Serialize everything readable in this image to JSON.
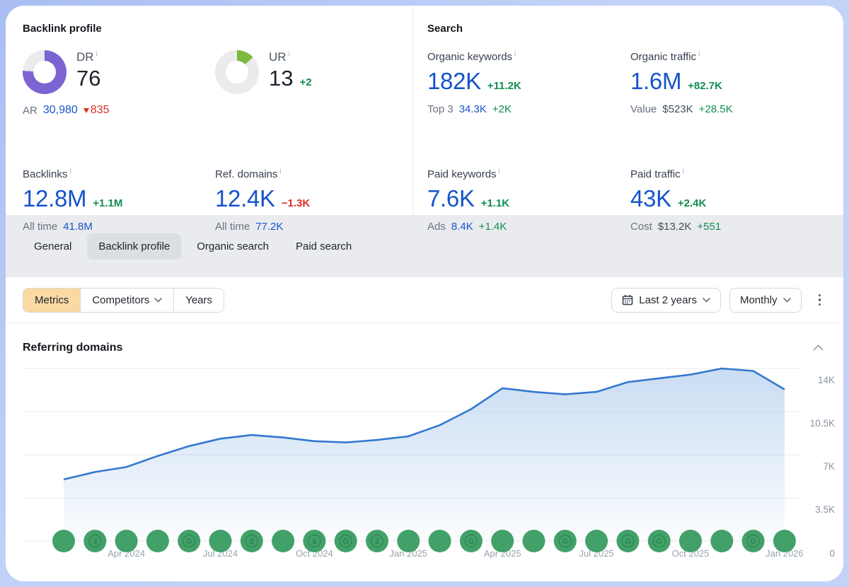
{
  "icons": {
    "info": "i"
  },
  "colors": {
    "accent_blue": "#1553cb",
    "positive_green": "#118d4f",
    "negative_red": "#d93025",
    "dr_purple": "#7c63d2",
    "ur_green": "#7cb93e",
    "line_blue": "#3478d0",
    "marker_green": "#42a169",
    "metrics_active_bg": "#fbd9a2"
  },
  "backlink_profile": {
    "title": "Backlink profile",
    "dr": {
      "label": "DR",
      "value": "76",
      "percent": 76
    },
    "ar": {
      "label": "AR",
      "value": "30,980",
      "delta": "835"
    },
    "ur": {
      "label": "UR",
      "value": "13",
      "delta": "+2",
      "percent": 13
    },
    "backlinks": {
      "label": "Backlinks",
      "value": "12.8M",
      "delta": "+1.1M",
      "sub_label": "All time",
      "sub_value": "41.8M"
    },
    "ref_domains": {
      "label": "Ref. domains",
      "value": "12.4K",
      "delta": "−1.3K",
      "sub_label": "All time",
      "sub_value": "77.2K"
    }
  },
  "search": {
    "title": "Search",
    "organic_keywords": {
      "label": "Organic keywords",
      "value": "182K",
      "delta": "+11.2K",
      "sub_label": "Top 3",
      "sub_value": "34.3K",
      "sub_delta": "+2K"
    },
    "organic_traffic": {
      "label": "Organic traffic",
      "value": "1.6M",
      "delta": "+82.7K",
      "sub_label": "Value",
      "sub_value": "$523K",
      "sub_delta": "+28.5K"
    },
    "paid_keywords": {
      "label": "Paid keywords",
      "value": "7.6K",
      "delta": "+1.1K",
      "sub_label": "Ads",
      "sub_value": "8.4K",
      "sub_delta": "+1.4K"
    },
    "paid_traffic": {
      "label": "Paid traffic",
      "value": "43K",
      "delta": "+2.4K",
      "sub_label": "Cost",
      "sub_value": "$13.2K",
      "sub_delta": "+551"
    }
  },
  "tabs": {
    "items": [
      "General",
      "Backlink profile",
      "Organic search",
      "Paid search"
    ],
    "active_index": 1
  },
  "toolbar": {
    "segments": [
      {
        "label": "Metrics",
        "active": true,
        "chevron": false
      },
      {
        "label": "Competitors",
        "active": false,
        "chevron": true
      },
      {
        "label": "Years",
        "active": false,
        "chevron": false
      }
    ],
    "date_range_label": "Last 2 years",
    "granularity_label": "Monthly"
  },
  "chart_data": {
    "type": "area",
    "title": "Referring domains",
    "x": [
      "Feb 2024",
      "Mar 2024",
      "Apr 2024",
      "May 2024",
      "Jun 2024",
      "Jul 2024",
      "Aug 2024",
      "Sep 2024",
      "Oct 2024",
      "Nov 2024",
      "Dec 2024",
      "Jan 2025",
      "Feb 2025",
      "Mar 2025",
      "Apr 2025",
      "May 2025",
      "Jun 2025",
      "Jul 2025",
      "Aug 2025",
      "Sep 2025",
      "Oct 2025",
      "Nov 2025",
      "Dec 2025",
      "Jan 2026"
    ],
    "values": [
      5000,
      5600,
      6000,
      6900,
      7700,
      8300,
      8600,
      8400,
      8100,
      8000,
      8200,
      8500,
      9400,
      10700,
      12400,
      12100,
      11900,
      12100,
      12900,
      13200,
      13500,
      14000,
      13800,
      12300
    ],
    "ylabel": "",
    "xlabel": "",
    "ylim": [
      0,
      14000
    ],
    "grid": true,
    "y_ticks": [
      {
        "value": 0,
        "label": "0"
      },
      {
        "value": 3500,
        "label": "3.5K"
      },
      {
        "value": 7000,
        "label": "7K"
      },
      {
        "value": 10500,
        "label": "10.5K"
      },
      {
        "value": 14000,
        "label": "14K"
      }
    ],
    "x_tick_indices": [
      2,
      5,
      8,
      11,
      14,
      17,
      20,
      23
    ],
    "x_tick_labels": [
      "Apr 2024",
      "Jul 2024",
      "Oct 2024",
      "Jan 2025",
      "Apr 2025",
      "Jul 2025",
      "Oct 2025",
      "Jan 2026"
    ],
    "event_marker_glyphs": [
      "",
      "3",
      "",
      "",
      "G",
      "",
      "2",
      "",
      "a",
      "G",
      "2",
      "",
      "",
      "G",
      "",
      "",
      "G",
      "",
      "G",
      "G",
      "",
      "",
      "G",
      ""
    ]
  }
}
